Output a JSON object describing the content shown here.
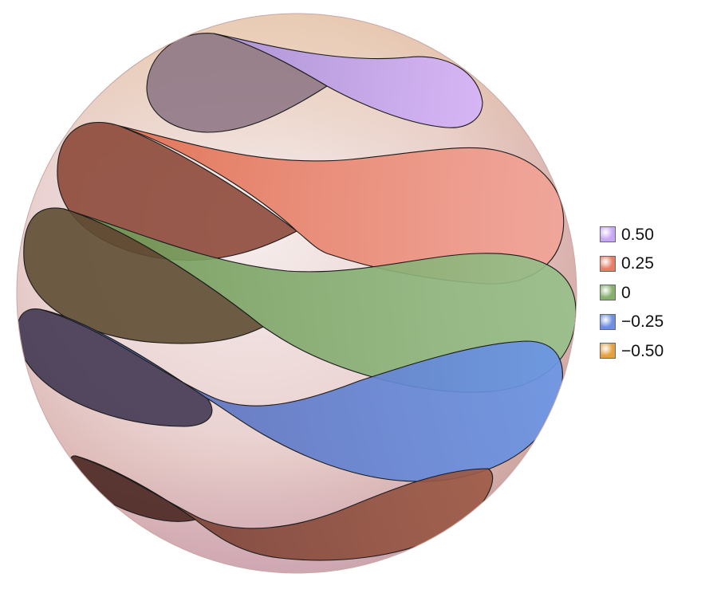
{
  "legend": {
    "items": [
      {
        "label": "0.50",
        "color": "#c9a8f7"
      },
      {
        "label": "0.25",
        "color": "#e97e65"
      },
      {
        "label": "0",
        "color": "#86b06c"
      },
      {
        "label": "−0.25",
        "color": "#6e8fe0"
      },
      {
        "label": "−0.50",
        "color": "#e5a040"
      }
    ]
  },
  "colors": {
    "sphere_light": "#f3e7e6",
    "sphere_mid": "#e2b8b5",
    "sphere_edge": "#c59a96",
    "band_outline": "#1a1a1a"
  }
}
